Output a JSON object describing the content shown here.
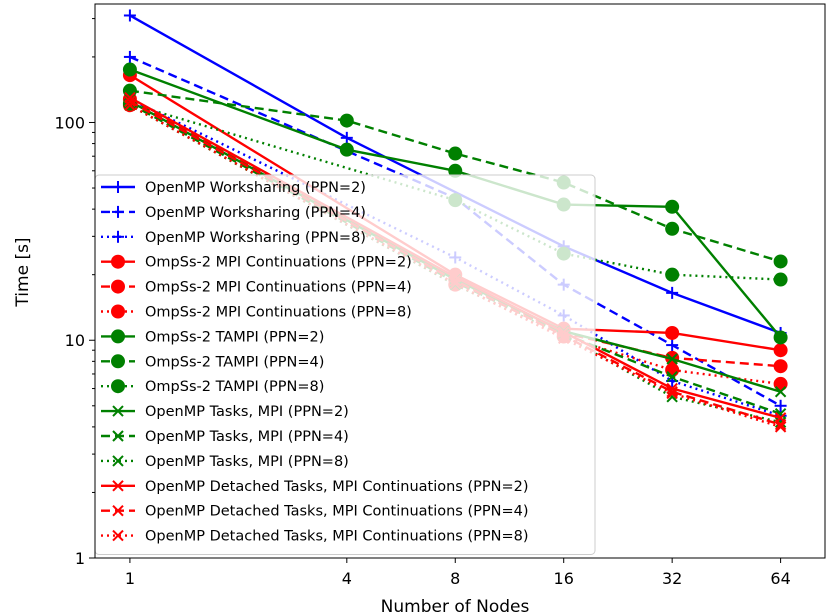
{
  "chart_data": {
    "type": "line",
    "title": "",
    "xlabel": "Number of Nodes",
    "ylabel": "Time [s]",
    "xscale": "log2",
    "yscale": "log10",
    "x": [
      1,
      4,
      8,
      16,
      32,
      64
    ],
    "x_tick_labels": [
      "1",
      "4",
      "8",
      "16",
      "32",
      "64"
    ],
    "ylim": [
      1,
      350
    ],
    "y_tick_labels": [
      "1",
      "10",
      "100"
    ],
    "y_ticks": [
      1,
      10,
      100
    ],
    "legend_position": "center-left",
    "series": [
      {
        "name": "OpenMP Worksharing (PPN=2)",
        "color": "#0000ff",
        "linestyle": "solid",
        "marker": "plus",
        "values": [
          310,
          85,
          null,
          27,
          16.5,
          10.8
        ]
      },
      {
        "name": "OpenMP Worksharing (PPN=4)",
        "color": "#0000ff",
        "linestyle": "dashed",
        "marker": "plus",
        "values": [
          200,
          null,
          45,
          18,
          9.5,
          5.0
        ]
      },
      {
        "name": "OpenMP Worksharing (PPN=8)",
        "color": "#0000ff",
        "linestyle": "dotted",
        "marker": "plus",
        "values": [
          128,
          null,
          24,
          13,
          6.5,
          4.5
        ]
      },
      {
        "name": "OmpSs-2 MPI Continuations (PPN=2)",
        "color": "#ff0000",
        "linestyle": "solid",
        "marker": "circle",
        "values": [
          165,
          null,
          20,
          11.3,
          10.8,
          9.0
        ]
      },
      {
        "name": "OmpSs-2 MPI Continuations (PPN=4)",
        "color": "#ff0000",
        "linestyle": "dashed",
        "marker": "circle",
        "values": [
          128,
          null,
          19,
          10.8,
          8.3,
          7.6
        ]
      },
      {
        "name": "OmpSs-2 MPI Continuations (PPN=8)",
        "color": "#ff0000",
        "linestyle": "dotted",
        "marker": "circle",
        "values": [
          120,
          null,
          18,
          10.4,
          7.3,
          6.3
        ]
      },
      {
        "name": "OmpSs-2 TAMPI (PPN=2)",
        "color": "#008000",
        "linestyle": "solid",
        "marker": "circle",
        "values": [
          175,
          75,
          60,
          42,
          41,
          10.3
        ]
      },
      {
        "name": "OmpSs-2 TAMPI (PPN=4)",
        "color": "#008000",
        "linestyle": "dashed",
        "marker": "circle",
        "values": [
          140,
          102,
          72,
          53,
          32.5,
          23
        ]
      },
      {
        "name": "OmpSs-2 TAMPI (PPN=8)",
        "color": "#008000",
        "linestyle": "dotted",
        "marker": "circle",
        "values": [
          122,
          null,
          44,
          25,
          20,
          19
        ]
      },
      {
        "name": "OpenMP Tasks, MPI (PPN=2)",
        "color": "#008000",
        "linestyle": "solid",
        "marker": "x",
        "values": [
          125,
          null,
          19,
          11,
          8.2,
          5.8
        ]
      },
      {
        "name": "OpenMP Tasks, MPI (PPN=4)",
        "color": "#008000",
        "linestyle": "dashed",
        "marker": "x",
        "values": [
          122,
          null,
          18.5,
          10.7,
          6.8,
          4.6
        ]
      },
      {
        "name": "OpenMP Tasks, MPI (PPN=8)",
        "color": "#008000",
        "linestyle": "dotted",
        "marker": "x",
        "values": [
          120,
          null,
          18,
          10.5,
          5.5,
          4.2
        ]
      },
      {
        "name": "OpenMP Detached Tasks, MPI Continuations (PPN=2)",
        "color": "#ff0000",
        "linestyle": "solid",
        "marker": "x",
        "values": [
          130,
          null,
          19.5,
          10.9,
          6.0,
          4.4
        ]
      },
      {
        "name": "OpenMP Detached Tasks, MPI Continuations (PPN=4)",
        "color": "#ff0000",
        "linestyle": "dashed",
        "marker": "x",
        "values": [
          125,
          null,
          18.8,
          10.5,
          5.8,
          4.1
        ]
      },
      {
        "name": "OpenMP Detached Tasks, MPI Continuations (PPN=8)",
        "color": "#ff0000",
        "linestyle": "dotted",
        "marker": "x",
        "values": [
          120,
          null,
          18.2,
          10.2,
          5.7,
          4.0
        ]
      }
    ]
  }
}
